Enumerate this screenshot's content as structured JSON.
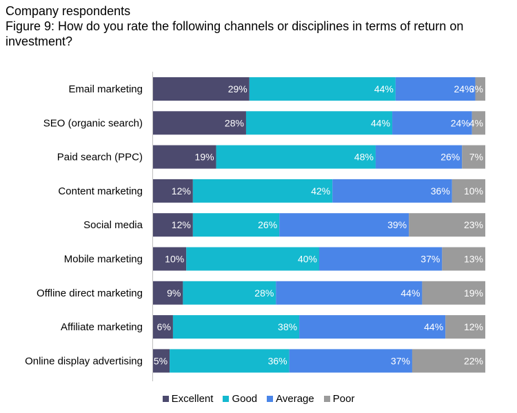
{
  "header": {
    "subtitle": "Company respondents",
    "title": "Figure 9: How do you rate the following channels or disciplines in terms of return on investment?"
  },
  "chart_data": {
    "type": "bar",
    "orientation": "horizontal",
    "stacked": true,
    "categories": [
      "Email marketing",
      "SEO (organic search)",
      "Paid search (PPC)",
      "Content marketing",
      "Social media",
      "Mobile marketing",
      "Offline direct marketing",
      "Affiliate marketing",
      "Online display advertising"
    ],
    "series": [
      {
        "name": "Excellent",
        "color": "#4c4a6e",
        "values": [
          29,
          28,
          19,
          12,
          12,
          10,
          9,
          6,
          5
        ]
      },
      {
        "name": "Good",
        "color": "#14b9cf",
        "values": [
          44,
          44,
          48,
          42,
          26,
          40,
          28,
          38,
          36
        ]
      },
      {
        "name": "Average",
        "color": "#4a85e8",
        "values": [
          24,
          24,
          26,
          36,
          39,
          37,
          44,
          44,
          37
        ]
      },
      {
        "name": "Poor",
        "color": "#9b9b9b",
        "values": [
          3,
          4,
          7,
          10,
          23,
          13,
          19,
          12,
          22
        ]
      }
    ],
    "label_suffix": "%",
    "legend_position": "bottom",
    "grid": false
  }
}
